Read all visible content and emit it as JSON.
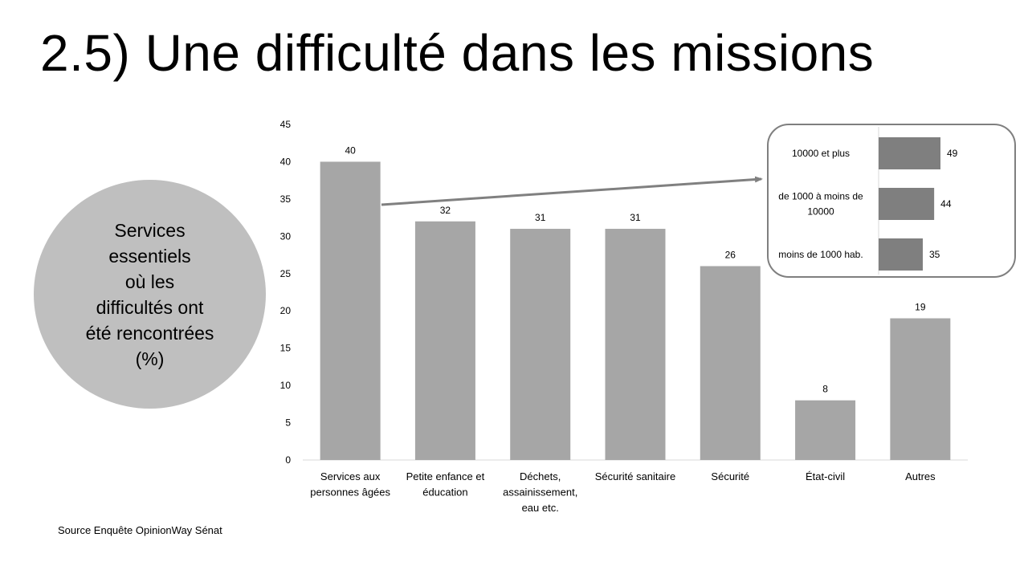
{
  "slide": {
    "title": "2.5) Une difficulté dans les missions",
    "circle_lines": [
      "Services",
      "essentiels",
      "où les",
      "difficultés ont",
      "été rencontrées",
      "(%)"
    ],
    "source": "Source Enquête OpinionWay Sénat"
  },
  "colors": {
    "bar": "#a6a6a6",
    "inset_bar": "#7f7f7f",
    "circle": "#bfbfbf",
    "arrow": "#808080",
    "axis": "#d9d9d9"
  },
  "chart_data": [
    {
      "type": "bar",
      "title": "",
      "categories": [
        [
          "Services aux",
          "personnes âgées"
        ],
        [
          "Petite enfance et",
          "éducation"
        ],
        [
          "Déchets,",
          "assainissement,",
          "eau etc."
        ],
        [
          "Sécurité sanitaire"
        ],
        [
          "Sécurité"
        ],
        [
          "État-civil"
        ],
        [
          "Autres"
        ]
      ],
      "values": [
        40,
        32,
        31,
        31,
        26,
        8,
        19
      ],
      "ylim": [
        0,
        45
      ],
      "yticks": [
        0,
        5,
        10,
        15,
        20,
        25,
        30,
        35,
        40,
        45
      ],
      "data_labels": true,
      "grid": false,
      "legend": "none"
    },
    {
      "type": "bar",
      "orientation": "horizontal",
      "title": "",
      "categories": [
        [
          "10000 et plus"
        ],
        [
          "de 1000 à moins de",
          "10000"
        ],
        [
          "moins de 1000 hab."
        ]
      ],
      "values": [
        49,
        44,
        35
      ],
      "data_labels": true,
      "grid": false,
      "legend": "none",
      "annotation": "arrow from 'Services aux personnes âgées' bar to this inset breakdown"
    }
  ]
}
